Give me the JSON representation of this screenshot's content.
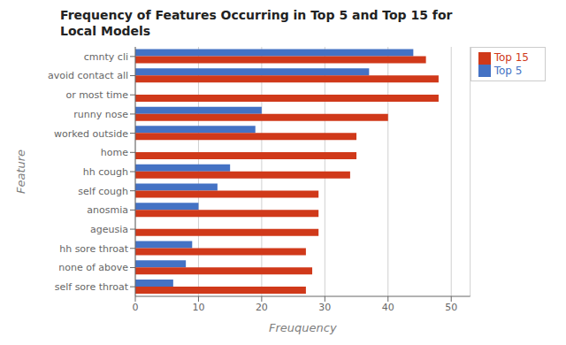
{
  "chart_data": {
    "type": "bar",
    "orientation": "horizontal",
    "title": "Frequency of Features Occurring in Top 5 and Top 15 for\nLocal Models",
    "xlabel": "Freuquency",
    "ylabel": "Feature",
    "categories": [
      "self sore throat",
      "none of above",
      "hh sore throat",
      "ageusia",
      "anosmia",
      "self cough",
      "hh cough",
      "home",
      "worked outside",
      "runny nose",
      "or most time",
      "avoid contact all",
      "cmnty cli"
    ],
    "series": [
      {
        "name": "Top 5",
        "color": "#4472c4",
        "values": [
          6,
          8,
          9,
          0,
          10,
          13,
          15,
          0,
          19,
          20,
          0,
          37,
          44
        ]
      },
      {
        "name": "Top 15",
        "color": "#d0391a",
        "values": [
          27,
          28,
          27,
          29,
          29,
          29,
          34,
          35,
          35,
          40,
          48,
          48,
          46
        ]
      }
    ],
    "xlim": [
      0,
      53
    ],
    "xticks": [
      0,
      10,
      20,
      30,
      40,
      50
    ],
    "grid": true,
    "legend": "upper right"
  }
}
